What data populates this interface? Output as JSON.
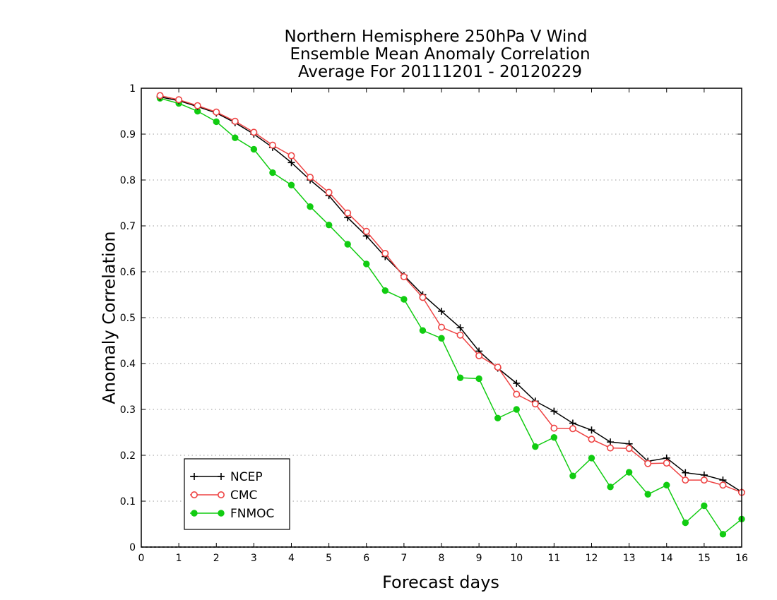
{
  "chart_data": {
    "type": "line",
    "title_lines": [
      "Northern Hemisphere 250hPa V Wind",
      "Ensemble Mean Anomaly Correlation",
      "Average For 20111201 - 20120229"
    ],
    "xlabel": "Forecast days",
    "ylabel": "Anomaly Correlation",
    "xlim": [
      0,
      16
    ],
    "ylim": [
      0,
      1
    ],
    "xticks": [
      "0",
      "1",
      "2",
      "3",
      "4",
      "5",
      "6",
      "7",
      "8",
      "9",
      "10",
      "11",
      "12",
      "13",
      "14",
      "15",
      "16"
    ],
    "yticks": [
      "0",
      "0.1",
      "0.2",
      "0.3",
      "0.4",
      "0.5",
      "0.6",
      "0.7",
      "0.8",
      "0.9",
      "1"
    ],
    "grid": "horizontal dotted",
    "legend_position": "bottom-left",
    "x": [
      0.5,
      1,
      1.5,
      2,
      2.5,
      3,
      3.5,
      4,
      4.5,
      5,
      5.5,
      6,
      6.5,
      7,
      7.5,
      8,
      8.5,
      9,
      9.5,
      10,
      10.5,
      11,
      11.5,
      12,
      12.5,
      13,
      13.5,
      14,
      14.5,
      15,
      15.5,
      16
    ],
    "series": [
      {
        "name": "NCEP",
        "color": "#000000",
        "marker": "plus",
        "values": [
          0.981,
          0.973,
          0.96,
          0.946,
          0.925,
          0.9,
          0.871,
          0.838,
          0.8,
          0.766,
          0.718,
          0.678,
          0.633,
          0.592,
          0.55,
          0.514,
          0.478,
          0.427,
          0.39,
          0.357,
          0.318,
          0.296,
          0.27,
          0.255,
          0.229,
          0.225,
          0.187,
          0.194,
          0.162,
          0.157,
          0.146,
          0.12
        ]
      },
      {
        "name": "CMC",
        "color": "#ee4444",
        "marker": "open-circle",
        "values": [
          0.984,
          0.975,
          0.962,
          0.948,
          0.928,
          0.904,
          0.876,
          0.853,
          0.806,
          0.773,
          0.728,
          0.688,
          0.64,
          0.589,
          0.544,
          0.479,
          0.462,
          0.417,
          0.392,
          0.333,
          0.312,
          0.259,
          0.258,
          0.235,
          0.216,
          0.215,
          0.182,
          0.183,
          0.146,
          0.146,
          0.135,
          0.119
        ]
      },
      {
        "name": "FNMOC",
        "color": "#11cc11",
        "marker": "filled-circle",
        "values": [
          0.978,
          0.967,
          0.95,
          0.927,
          0.892,
          0.867,
          0.816,
          0.789,
          0.742,
          0.702,
          0.66,
          0.617,
          0.559,
          0.54,
          0.472,
          0.455,
          0.369,
          0.367,
          0.281,
          0.3,
          0.219,
          0.239,
          0.155,
          0.194,
          0.131,
          0.163,
          0.115,
          0.135,
          0.053,
          0.09,
          0.028,
          0.061
        ]
      }
    ]
  }
}
